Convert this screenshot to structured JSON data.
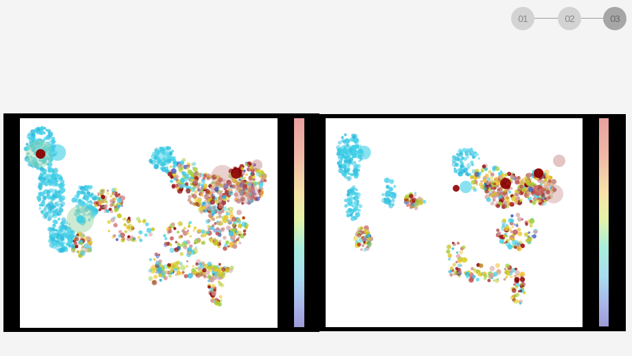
{
  "stepper": {
    "steps": [
      "01",
      "02",
      "03"
    ],
    "active_index": 2
  },
  "maps": [
    {
      "name": "left-map",
      "colormap": [
        "#e8a0a0",
        "#f6e2a8",
        "#a8eedc",
        "#9d9ad8"
      ]
    },
    {
      "name": "right-map",
      "colormap": [
        "#e8a0a0",
        "#f6e2a8",
        "#a8eedc",
        "#9d9ad8"
      ]
    }
  ]
}
